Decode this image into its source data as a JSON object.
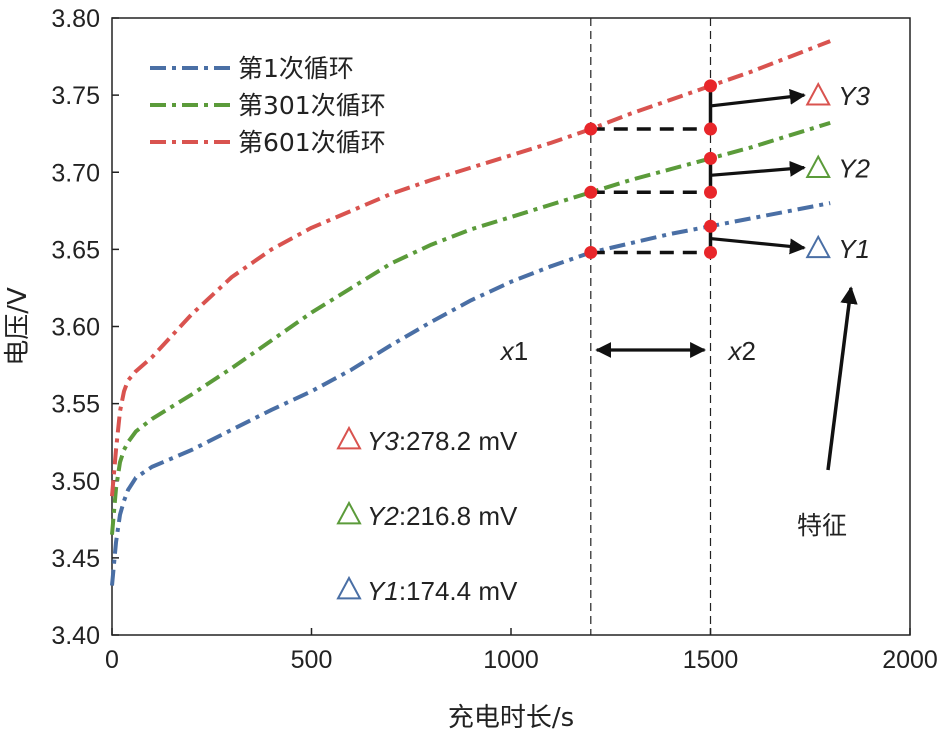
{
  "chart_data": {
    "type": "line",
    "xlabel": "充电时长/s",
    "ylabel": "电压/V",
    "xlim": [
      0,
      2000
    ],
    "ylim": [
      3.4,
      3.8
    ],
    "xticks": [
      0,
      500,
      1000,
      1500,
      2000
    ],
    "xtick_labels": [
      "0",
      "500",
      "1000",
      "1500",
      "2000"
    ],
    "yticks": [
      3.4,
      3.45,
      3.5,
      3.55,
      3.6,
      3.65,
      3.7,
      3.75,
      3.8
    ],
    "ytick_labels": [
      "3.40",
      "3.45",
      "3.50",
      "3.55",
      "3.60",
      "3.65",
      "3.70",
      "3.75",
      "3.80"
    ],
    "legend_position": "top-left",
    "series": [
      {
        "name": "第1次循环",
        "color": "#4a6fa5",
        "x": [
          0,
          10,
          20,
          30,
          40,
          60,
          100,
          200,
          300,
          400,
          500,
          600,
          700,
          800,
          900,
          1000,
          1100,
          1200,
          1300,
          1400,
          1500,
          1600,
          1700,
          1800
        ],
        "y": [
          3.432,
          3.46,
          3.478,
          3.487,
          3.494,
          3.502,
          3.509,
          3.52,
          3.533,
          3.546,
          3.558,
          3.572,
          3.588,
          3.603,
          3.617,
          3.629,
          3.639,
          3.648,
          3.654,
          3.66,
          3.665,
          3.67,
          3.675,
          3.68
        ]
      },
      {
        "name": "第301次循环",
        "color": "#5b9b3a",
        "x": [
          0,
          10,
          20,
          30,
          40,
          60,
          100,
          200,
          300,
          400,
          500,
          600,
          700,
          800,
          900,
          1000,
          1100,
          1200,
          1300,
          1400,
          1500,
          1600,
          1700,
          1800
        ],
        "y": [
          3.465,
          3.495,
          3.512,
          3.52,
          3.525,
          3.532,
          3.54,
          3.556,
          3.573,
          3.591,
          3.609,
          3.625,
          3.641,
          3.653,
          3.663,
          3.671,
          3.679,
          3.687,
          3.695,
          3.702,
          3.709,
          3.716,
          3.724,
          3.732
        ]
      },
      {
        "name": "第601次循环",
        "color": "#d9534f",
        "x": [
          0,
          10,
          20,
          30,
          40,
          60,
          100,
          200,
          300,
          400,
          500,
          600,
          700,
          800,
          900,
          1000,
          1100,
          1200,
          1300,
          1400,
          1500,
          1600,
          1700,
          1800
        ],
        "y": [
          3.49,
          3.52,
          3.545,
          3.558,
          3.565,
          3.571,
          3.58,
          3.608,
          3.632,
          3.65,
          3.664,
          3.675,
          3.686,
          3.695,
          3.703,
          3.711,
          3.719,
          3.728,
          3.738,
          3.747,
          3.756,
          3.765,
          3.775,
          3.785
        ]
      }
    ],
    "reference_lines": {
      "x1_value": 1200,
      "x2_value": 1500,
      "x1_label": "x1",
      "x2_label": "x2"
    },
    "marker_points": [
      {
        "x": 1200,
        "y": 3.648
      },
      {
        "x": 1500,
        "y": 3.648
      },
      {
        "x": 1500,
        "y": 3.665
      },
      {
        "x": 1200,
        "y": 3.687
      },
      {
        "x": 1500,
        "y": 3.687
      },
      {
        "x": 1500,
        "y": 3.709
      },
      {
        "x": 1200,
        "y": 3.728
      },
      {
        "x": 1500,
        "y": 3.728
      },
      {
        "x": 1500,
        "y": 3.756
      }
    ],
    "features": [
      {
        "label": "Y3",
        "color": "#d9534f",
        "marker_x": 1770,
        "marker_y": 3.75,
        "summary": "Y3:278.2 mV",
        "value_mV": 278.2
      },
      {
        "label": "Y2",
        "color": "#5b9b3a",
        "marker_x": 1770,
        "marker_y": 3.703,
        "summary": "Y2:216.8 mV",
        "value_mV": 216.8
      },
      {
        "label": "Y1",
        "color": "#4a6fa5",
        "marker_x": 1770,
        "marker_y": 3.651,
        "summary": "Y1:174.4 mV",
        "value_mV": 174.4
      }
    ],
    "feature_label": "特征",
    "marker_color": "#e8262a"
  }
}
